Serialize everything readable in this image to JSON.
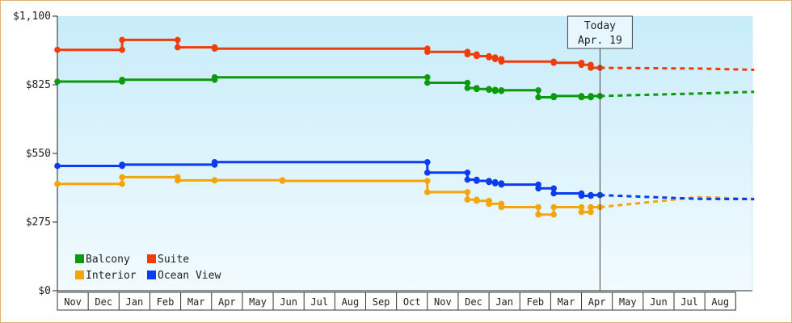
{
  "chart_data": {
    "type": "line",
    "title": "",
    "xlabel": "",
    "ylabel": "",
    "ylim": [
      0,
      1100
    ],
    "yticks": [
      {
        "value": 0,
        "label": "$0"
      },
      {
        "value": 275,
        "label": "$275"
      },
      {
        "value": 550,
        "label": "$550"
      },
      {
        "value": 825,
        "label": "$825"
      },
      {
        "value": 1100,
        "label": "$1,100"
      }
    ],
    "months": [
      "Nov",
      "Dec",
      "Jan",
      "Feb",
      "Mar",
      "Apr",
      "May",
      "Jun",
      "Jul",
      "Aug",
      "Sep",
      "Oct",
      "Nov",
      "Dec",
      "Jan",
      "Feb",
      "Mar",
      "Apr",
      "May",
      "Jun",
      "Jul",
      "Aug"
    ],
    "today": {
      "line1": "Today",
      "line2": "Apr. 19",
      "x": 17.6
    },
    "legend_position": "bottom-left",
    "series": [
      {
        "name": "Balcony",
        "color": "#0a9a0a",
        "points": [
          [
            0,
            838
          ],
          [
            2.1,
            838
          ],
          [
            2.1,
            845
          ],
          [
            5.1,
            845
          ],
          [
            5.1,
            855
          ],
          [
            12.0,
            855
          ],
          [
            12.0,
            833
          ],
          [
            13.3,
            833
          ],
          [
            13.3,
            812
          ],
          [
            13.6,
            812
          ],
          [
            13.6,
            808
          ],
          [
            14.0,
            808
          ],
          [
            14.0,
            805
          ],
          [
            14.2,
            805
          ],
          [
            14.2,
            800
          ],
          [
            14.4,
            800
          ],
          [
            14.4,
            803
          ],
          [
            15.6,
            803
          ],
          [
            15.6,
            775
          ],
          [
            16.1,
            775
          ],
          [
            16.1,
            780
          ],
          [
            17.0,
            780
          ],
          [
            17.0,
            775
          ],
          [
            17.3,
            775
          ],
          [
            17.3,
            780
          ],
          [
            17.6,
            780
          ]
        ],
        "projection": [
          [
            17.6,
            780
          ],
          [
            20.8,
            790
          ],
          [
            22.6,
            797
          ]
        ]
      },
      {
        "name": "Suite",
        "color": "#f03c0a",
        "points": [
          [
            0,
            965
          ],
          [
            2.1,
            965
          ],
          [
            2.1,
            1005
          ],
          [
            3.9,
            1005
          ],
          [
            3.9,
            975
          ],
          [
            5.1,
            975
          ],
          [
            5.1,
            970
          ],
          [
            12.0,
            970
          ],
          [
            12.0,
            957
          ],
          [
            13.3,
            957
          ],
          [
            13.3,
            947
          ],
          [
            13.6,
            947
          ],
          [
            13.6,
            940
          ],
          [
            14.0,
            940
          ],
          [
            14.0,
            935
          ],
          [
            14.2,
            935
          ],
          [
            14.2,
            928
          ],
          [
            14.4,
            928
          ],
          [
            14.4,
            918
          ],
          [
            16.1,
            918
          ],
          [
            16.1,
            913
          ],
          [
            17.0,
            913
          ],
          [
            17.0,
            905
          ],
          [
            17.3,
            905
          ],
          [
            17.3,
            893
          ],
          [
            17.6,
            893
          ]
        ],
        "projection": [
          [
            17.6,
            893
          ],
          [
            20.8,
            890
          ],
          [
            22.6,
            885
          ]
        ]
      },
      {
        "name": "Interior",
        "color": "#f5a50a",
        "points": [
          [
            0,
            428
          ],
          [
            2.1,
            428
          ],
          [
            2.1,
            455
          ],
          [
            3.9,
            455
          ],
          [
            3.9,
            442
          ],
          [
            5.1,
            442
          ],
          [
            5.1,
            443
          ],
          [
            7.3,
            443
          ],
          [
            7.3,
            440
          ],
          [
            12.0,
            440
          ],
          [
            12.0,
            395
          ],
          [
            13.3,
            395
          ],
          [
            13.3,
            365
          ],
          [
            13.6,
            365
          ],
          [
            13.6,
            360
          ],
          [
            14.0,
            360
          ],
          [
            14.0,
            348
          ],
          [
            14.4,
            348
          ],
          [
            14.4,
            335
          ],
          [
            15.6,
            335
          ],
          [
            15.6,
            305
          ],
          [
            16.1,
            305
          ],
          [
            16.1,
            335
          ],
          [
            17.0,
            335
          ],
          [
            17.0,
            315
          ],
          [
            17.3,
            315
          ],
          [
            17.3,
            335
          ],
          [
            17.6,
            335
          ]
        ],
        "projection": [
          [
            17.6,
            335
          ],
          [
            20.8,
            375
          ],
          [
            22.6,
            368
          ]
        ]
      },
      {
        "name": "Ocean View",
        "color": "#0a3cf0",
        "points": [
          [
            0,
            500
          ],
          [
            2.1,
            500
          ],
          [
            2.1,
            505
          ],
          [
            5.1,
            505
          ],
          [
            5.1,
            515
          ],
          [
            12.0,
            515
          ],
          [
            12.0,
            473
          ],
          [
            13.3,
            473
          ],
          [
            13.3,
            445
          ],
          [
            13.6,
            445
          ],
          [
            13.6,
            440
          ],
          [
            14.0,
            440
          ],
          [
            14.0,
            435
          ],
          [
            14.2,
            435
          ],
          [
            14.2,
            430
          ],
          [
            14.4,
            430
          ],
          [
            14.4,
            425
          ],
          [
            15.6,
            425
          ],
          [
            15.6,
            410
          ],
          [
            16.1,
            410
          ],
          [
            16.1,
            390
          ],
          [
            17.0,
            390
          ],
          [
            17.0,
            380
          ],
          [
            17.3,
            380
          ],
          [
            17.3,
            383
          ],
          [
            17.6,
            383
          ]
        ],
        "projection": [
          [
            17.6,
            383
          ],
          [
            20.8,
            368
          ],
          [
            22.6,
            367
          ]
        ]
      }
    ],
    "legend": [
      {
        "label": "Balcony",
        "color": "#0a9a0a"
      },
      {
        "label": "Suite",
        "color": "#f03c0a"
      },
      {
        "label": "Interior",
        "color": "#f5a50a"
      },
      {
        "label": "Ocean View",
        "color": "#0a3cf0"
      }
    ]
  }
}
